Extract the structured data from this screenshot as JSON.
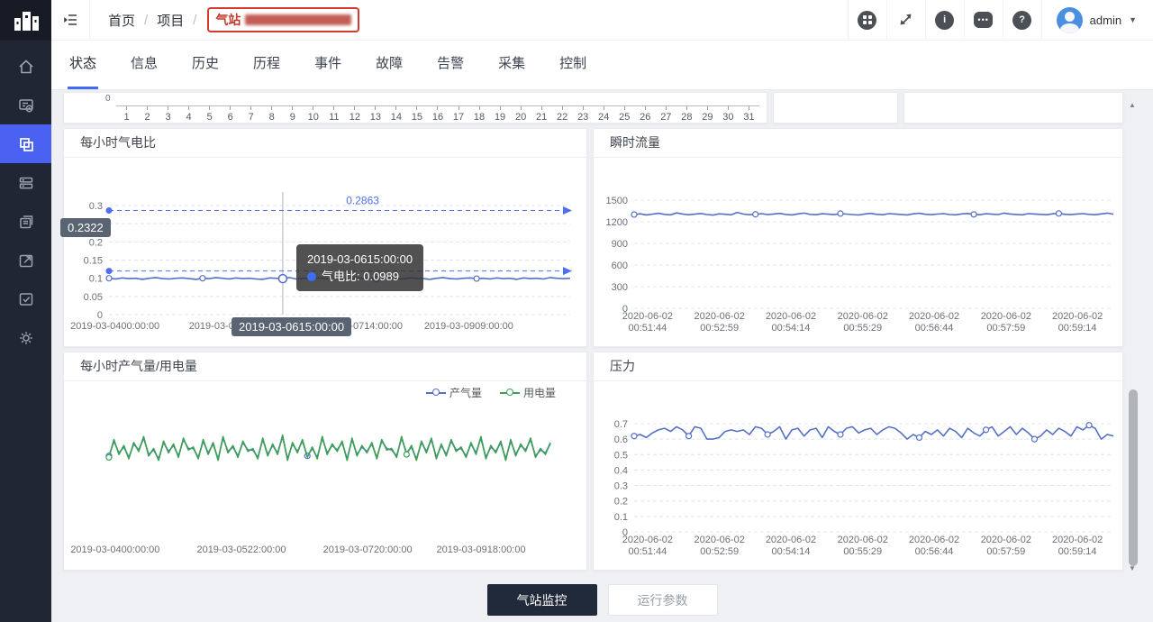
{
  "topbar": {
    "breadcrumb": {
      "home": "首页",
      "sep": "/",
      "project": "项目",
      "station_label": "气站"
    },
    "user_name": "admin"
  },
  "tabs": [
    {
      "label": "状态",
      "active": true
    },
    {
      "label": "信息",
      "active": false
    },
    {
      "label": "历史",
      "active": false
    },
    {
      "label": "历程",
      "active": false
    },
    {
      "label": "事件",
      "active": false
    },
    {
      "label": "故障",
      "active": false
    },
    {
      "label": "告警",
      "active": false
    },
    {
      "label": "采集",
      "active": false
    },
    {
      "label": "控制",
      "active": false
    }
  ],
  "sidebar": {
    "icons": [
      "home-icon",
      "report-icon",
      "projects-icon",
      "device-list-icon",
      "pages-icon",
      "export-icon",
      "task-check-icon",
      "settings-icon"
    ],
    "active_index": 2
  },
  "colors": {
    "accent": "#3f6bf5",
    "sidebar_active": "#4a61f2",
    "line_blue": "#5470c6",
    "line_green": "#3da155",
    "markline_blue": "#4e6ef2",
    "badge_bg": "#5a6372",
    "tooltip_marker": "#3d6ef7"
  },
  "day_axis": {
    "zero_label": "0",
    "days": [
      "1",
      "2",
      "3",
      "4",
      "5",
      "6",
      "7",
      "8",
      "9",
      "10",
      "11",
      "12",
      "13",
      "14",
      "15",
      "16",
      "17",
      "18",
      "19",
      "20",
      "21",
      "22",
      "23",
      "24",
      "25",
      "26",
      "27",
      "28",
      "29",
      "30",
      "31"
    ]
  },
  "footer": {
    "buttons": [
      {
        "label": "气站监控",
        "active": true
      },
      {
        "label": "运行参数",
        "active": false
      }
    ]
  },
  "chart_data": [
    {
      "id": "gas_ratio",
      "type": "line",
      "title": "每小时气电比",
      "ylim": [
        0,
        0.3
      ],
      "yticks": [
        {
          "v": 0,
          "label": "0"
        },
        {
          "v": 0.05,
          "label": "0.05"
        },
        {
          "v": 0.1,
          "label": "0.1"
        },
        {
          "v": 0.15,
          "label": "0.15"
        },
        {
          "v": 0.2,
          "label": "0.2"
        },
        {
          "v": 0.25,
          "label": "0.25"
        },
        {
          "v": 0.3,
          "label": "0.3"
        }
      ],
      "xlabels": [
        "2019-03-0400:00:00",
        "2019-03-0519:00:00",
        "2019-03-0714:00:00",
        "2019-03-0909:00:00"
      ],
      "marklines": [
        {
          "value": 0.2863,
          "label": "0.2863",
          "faint": false
        },
        {
          "value": 0.12,
          "label": "0.12",
          "faint": true
        }
      ],
      "pointer": {
        "index": 26,
        "value": 0.0989,
        "x_badge": "2019-03-0615:00:00",
        "y_badge": "0.2322",
        "tooltip_title": "2019-03-0615:00:00",
        "tooltip_line": "气电比: 0.0989"
      },
      "series": [
        {
          "name": "气电比",
          "color": "#5470c6",
          "markers": [
            0,
            14,
            40,
            55
          ],
          "values": [
            0.1,
            0.098,
            0.101,
            0.099,
            0.1,
            0.097,
            0.1,
            0.102,
            0.099,
            0.098,
            0.1,
            0.101,
            0.099,
            0.097,
            0.1,
            0.099,
            0.102,
            0.1,
            0.098,
            0.101,
            0.099,
            0.1,
            0.098,
            0.097,
            0.101,
            0.1,
            0.0989,
            0.102,
            0.098,
            0.1,
            0.099,
            0.101,
            0.1,
            0.098,
            0.099,
            0.1,
            0.098,
            0.101,
            0.099,
            0.1,
            0.097,
            0.1,
            0.102,
            0.099,
            0.098,
            0.101,
            0.1,
            0.099,
            0.097,
            0.1,
            0.102,
            0.099,
            0.098,
            0.1,
            0.101,
            0.099,
            0.1,
            0.098,
            0.101,
            0.099,
            0.1,
            0.097,
            0.101,
            0.099,
            0.1,
            0.098,
            0.102,
            0.1,
            0.099,
            0.1
          ]
        }
      ]
    },
    {
      "id": "flow",
      "type": "line",
      "title": "瞬时流量",
      "ylim": [
        0,
        1500
      ],
      "yticks": [
        {
          "v": 0,
          "label": "0"
        },
        {
          "v": 300,
          "label": "300"
        },
        {
          "v": 600,
          "label": "600"
        },
        {
          "v": 900,
          "label": "900"
        },
        {
          "v": 1200,
          "label": "1200"
        },
        {
          "v": 1500,
          "label": "1500"
        }
      ],
      "xlabels": [
        [
          "2020-06-02",
          "00:51:44"
        ],
        [
          "2020-06-02",
          "00:52:59"
        ],
        [
          "2020-06-02",
          "00:54:14"
        ],
        [
          "2020-06-02",
          "00:55:29"
        ],
        [
          "2020-06-02",
          "00:56:44"
        ],
        [
          "2020-06-02",
          "00:57:59"
        ],
        [
          "2020-06-02",
          "00:59:14"
        ]
      ],
      "series": [
        {
          "name": "瞬时流量",
          "color": "#5470c6",
          "markers": [
            0,
            20,
            34,
            56,
            70
          ],
          "values": [
            1300,
            1310,
            1295,
            1305,
            1318,
            1302,
            1296,
            1322,
            1308,
            1298,
            1305,
            1315,
            1300,
            1292,
            1310,
            1304,
            1296,
            1330,
            1306,
            1298,
            1303,
            1312,
            1299,
            1307,
            1316,
            1301,
            1295,
            1309,
            1320,
            1302,
            1297,
            1311,
            1305,
            1299,
            1314,
            1306,
            1300,
            1294,
            1308,
            1316,
            1303,
            1298,
            1312,
            1307,
            1301,
            1295,
            1310,
            1318,
            1304,
            1299,
            1306,
            1313,
            1300,
            1296,
            1309,
            1315,
            1302,
            1298,
            1311,
            1305,
            1300,
            1320,
            1307,
            1301,
            1296,
            1312,
            1308,
            1303,
            1297,
            1310,
            1315,
            1304,
            1299,
            1307,
            1313,
            1302,
            1298,
            1309,
            1320,
            1305
          ]
        }
      ]
    },
    {
      "id": "prod",
      "type": "line",
      "title": "每小时产气量/用电量",
      "ylim": [
        0,
        100
      ],
      "yticks": [],
      "xlabels": [
        "2019-03-0400:00:00",
        "2019-03-0522:00:00",
        "2019-03-0720:00:00",
        "2019-03-0918:00:00"
      ],
      "legend": [
        {
          "label": "产气量",
          "color": "#5470c6"
        },
        {
          "label": "用电量",
          "color": "#3da155"
        }
      ],
      "series": [
        {
          "name": "产气量",
          "color": "#5470c6",
          "markers": [
            0,
            40
          ],
          "values": [
            65,
            75,
            67,
            71,
            64,
            73,
            69,
            77,
            66,
            69,
            63,
            74,
            68,
            72,
            65,
            76,
            70,
            70,
            64,
            75,
            67,
            73,
            63,
            77,
            68,
            71,
            65,
            74,
            69,
            69,
            64,
            76,
            66,
            72,
            67,
            78,
            63,
            73,
            68,
            75,
            65,
            70,
            64,
            77,
            67,
            72,
            69,
            74,
            63,
            76,
            66,
            71,
            68,
            73,
            64,
            75,
            70,
            69,
            65,
            77,
            67,
            71,
            63,
            74,
            68,
            76,
            64,
            72,
            66,
            75,
            69,
            70,
            65,
            73,
            67,
            77,
            64,
            71,
            68,
            74,
            63,
            75,
            66,
            72,
            69,
            76,
            65,
            69,
            67,
            73
          ]
        },
        {
          "name": "用电量",
          "color": "#3da155",
          "markers": [
            0,
            60
          ],
          "values": [
            64,
            76,
            66,
            72,
            63,
            74,
            68,
            78,
            65,
            70,
            62,
            75,
            67,
            73,
            64,
            77,
            69,
            71,
            63,
            76,
            66,
            74,
            62,
            78,
            67,
            72,
            64,
            75,
            68,
            70,
            63,
            77,
            65,
            73,
            66,
            79,
            62,
            74,
            67,
            76,
            64,
            71,
            63,
            78,
            66,
            73,
            68,
            75,
            62,
            77,
            65,
            72,
            67,
            74,
            63,
            76,
            69,
            70,
            64,
            78,
            66,
            72,
            62,
            75,
            67,
            77,
            63,
            73,
            65,
            76,
            68,
            71,
            64,
            74,
            66,
            78,
            63,
            72,
            67,
            75,
            62,
            76,
            65,
            73,
            68,
            77,
            64,
            70,
            66,
            74
          ]
        }
      ]
    },
    {
      "id": "pressure",
      "type": "line",
      "title": "压力",
      "ylim": [
        0,
        0.7
      ],
      "yticks": [
        {
          "v": 0,
          "label": "0"
        },
        {
          "v": 0.1,
          "label": "0.1"
        },
        {
          "v": 0.2,
          "label": "0.2"
        },
        {
          "v": 0.3,
          "label": "0.3"
        },
        {
          "v": 0.4,
          "label": "0.4"
        },
        {
          "v": 0.5,
          "label": "0.5"
        },
        {
          "v": 0.6,
          "label": "0.6"
        },
        {
          "v": 0.7,
          "label": "0.7"
        }
      ],
      "xlabels": [
        [
          "2020-06-02",
          "00:51:44"
        ],
        [
          "2020-06-02",
          "00:52:59"
        ],
        [
          "2020-06-02",
          "00:54:14"
        ],
        [
          "2020-06-02",
          "00:55:29"
        ],
        [
          "2020-06-02",
          "00:56:44"
        ],
        [
          "2020-06-02",
          "00:57:59"
        ],
        [
          "2020-06-02",
          "00:59:14"
        ]
      ],
      "series": [
        {
          "name": "压力",
          "color": "#5470c6",
          "markers": [
            0,
            9,
            22,
            34,
            47,
            58,
            66,
            75
          ],
          "values": [
            0.62,
            0.63,
            0.61,
            0.64,
            0.66,
            0.67,
            0.65,
            0.68,
            0.66,
            0.62,
            0.68,
            0.67,
            0.6,
            0.6,
            0.61,
            0.65,
            0.66,
            0.65,
            0.66,
            0.63,
            0.68,
            0.67,
            0.63,
            0.65,
            0.68,
            0.6,
            0.66,
            0.67,
            0.62,
            0.66,
            0.67,
            0.61,
            0.68,
            0.65,
            0.63,
            0.67,
            0.68,
            0.64,
            0.66,
            0.67,
            0.63,
            0.66,
            0.68,
            0.67,
            0.64,
            0.6,
            0.63,
            0.61,
            0.65,
            0.63,
            0.66,
            0.62,
            0.67,
            0.65,
            0.61,
            0.67,
            0.64,
            0.62,
            0.66,
            0.68,
            0.62,
            0.65,
            0.68,
            0.63,
            0.67,
            0.64,
            0.6,
            0.62,
            0.66,
            0.63,
            0.67,
            0.65,
            0.62,
            0.68,
            0.66,
            0.69,
            0.67,
            0.6,
            0.63,
            0.62
          ]
        }
      ]
    }
  ]
}
